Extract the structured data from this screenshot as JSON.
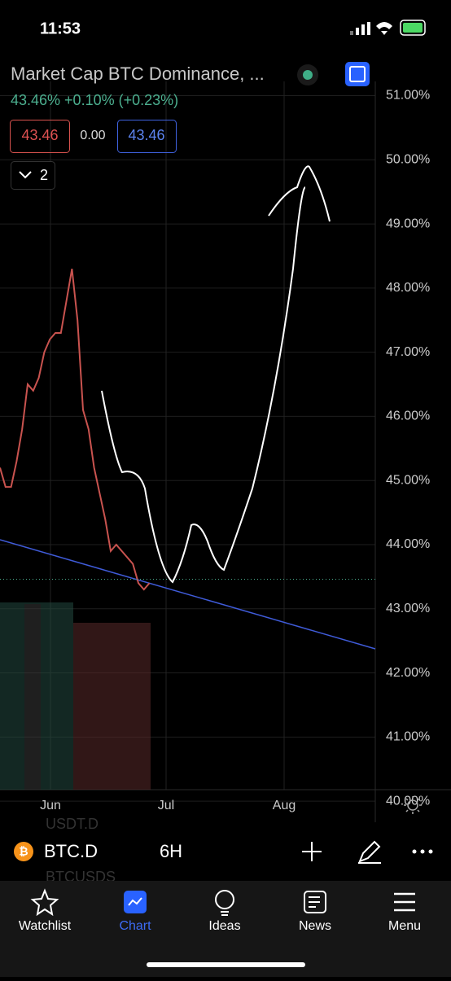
{
  "status_bar": {
    "time": "11:53"
  },
  "header": {
    "title": "Market Cap BTC Dominance, ...",
    "change": "43.46%  +0.10% (+0.23%)",
    "bid": "43.46",
    "spread": "0.00",
    "ask": "43.46",
    "indicators": "2"
  },
  "chart": {
    "type": "line",
    "color": "#c9534f",
    "current": 43.46,
    "values": [
      45.2,
      44.9,
      44.9,
      45.3,
      45.8,
      46.5,
      46.4,
      46.6,
      47.0,
      47.2,
      47.3,
      47.3,
      47.8,
      48.3,
      47.5,
      46.1,
      45.8,
      45.2,
      44.8,
      44.4,
      43.9,
      44.0,
      43.9,
      43.8,
      43.7,
      43.4,
      43.3,
      43.4
    ],
    "ylim": [
      51.4,
      39.9
    ],
    "yticks": [
      {
        "value": 51,
        "label": "51.00%"
      },
      {
        "value": 50,
        "label": "50.00%"
      },
      {
        "value": 49,
        "label": "49.00%"
      },
      {
        "value": 48,
        "label": "48.00%"
      },
      {
        "value": 47,
        "label": "47.00%"
      },
      {
        "value": 46,
        "label": "46.00%"
      },
      {
        "value": 45,
        "label": "45.00%"
      },
      {
        "value": 44,
        "label": "44.00%"
      },
      {
        "value": 43,
        "label": "43.00%"
      },
      {
        "value": 42,
        "label": "42.00%"
      },
      {
        "value": 41,
        "label": "41.00%"
      },
      {
        "value": 40,
        "label": "40.00%"
      }
    ],
    "time_labels": [
      "Jun",
      "Jul",
      "Aug"
    ]
  },
  "toolbar": {
    "symbol": "BTC.D",
    "interval": "6H",
    "ghost_1": "USDT.D",
    "ghost_2": "BTCUSDS"
  },
  "nav": [
    "Watchlist",
    "Chart",
    "Ideas",
    "News",
    "Menu"
  ]
}
